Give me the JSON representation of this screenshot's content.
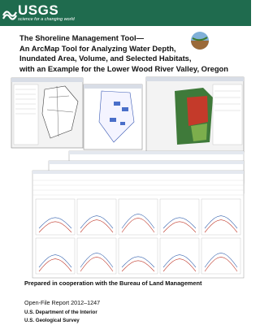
{
  "header": {
    "logo": "USGS",
    "tagline": "science for a changing world"
  },
  "title": {
    "lines": [
      "The Shoreline Management Tool—",
      "An ArcMap Tool for Analyzing Water Depth,",
      "Inundated Area, Volume, and Selected Habitats,",
      "with an Example for the Lower Wood River Valley, Oregon"
    ]
  },
  "cooperation": "Prepared in cooperation with the Bureau of Land Management",
  "report": "Open-File Report 2012–1247",
  "department": "U.S. Department of the Interior",
  "agency": "U.S. Geological Survey"
}
